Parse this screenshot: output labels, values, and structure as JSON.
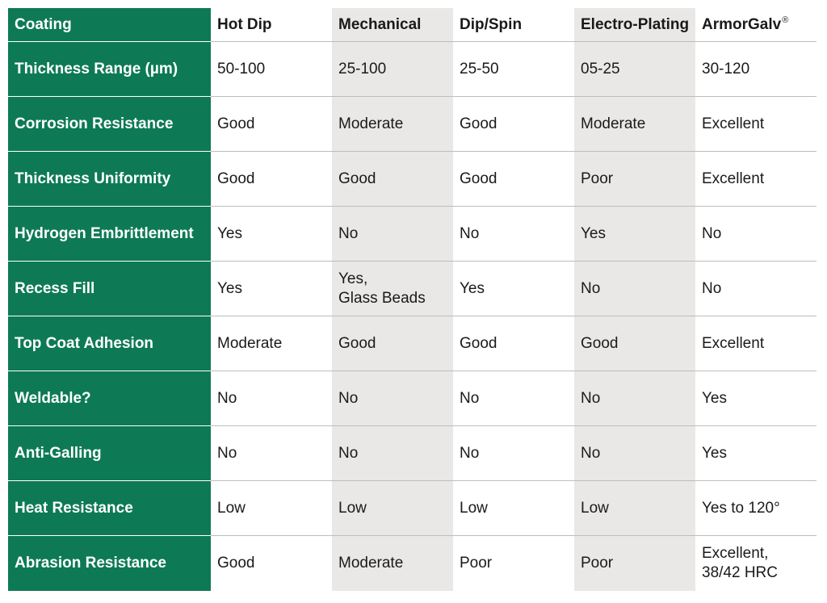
{
  "table": {
    "header": [
      "Coating",
      "Hot Dip",
      "Mechanical",
      "Dip/Spin",
      "Electro-Plating",
      {
        "text": "ArmorGalv",
        "sup": "®"
      }
    ],
    "rows": [
      [
        "Thickness Range (µm)",
        "50-100",
        "25-100",
        "25-50",
        "05-25",
        "30-120"
      ],
      [
        "Corrosion Resistance",
        "Good",
        "Moderate",
        "Good",
        "Moderate",
        "Excellent"
      ],
      [
        "Thickness Uniformity",
        "Good",
        "Good",
        "Good",
        "Poor",
        "Excellent"
      ],
      [
        "Hydrogen Embrittlement",
        "Yes",
        "No",
        "No",
        "Yes",
        "No"
      ],
      [
        "Recess Fill",
        "Yes",
        "Yes,\nGlass Beads",
        "Yes",
        "No",
        "No"
      ],
      [
        "Top Coat Adhesion",
        "Moderate",
        "Good",
        "Good",
        "Good",
        "Excellent"
      ],
      [
        "Weldable?",
        "No",
        "No",
        "No",
        "No",
        "Yes"
      ],
      [
        "Anti-Galling",
        "No",
        "No",
        "No",
        "No",
        "Yes"
      ],
      [
        "Heat Resistance",
        "Low",
        "Low",
        "Low",
        "Low",
        "Yes to 120°"
      ],
      [
        "Abrasion Resistance",
        "Good",
        "Moderate",
        "Poor",
        "Poor",
        "Excellent,\n38/42 HRC"
      ]
    ]
  }
}
